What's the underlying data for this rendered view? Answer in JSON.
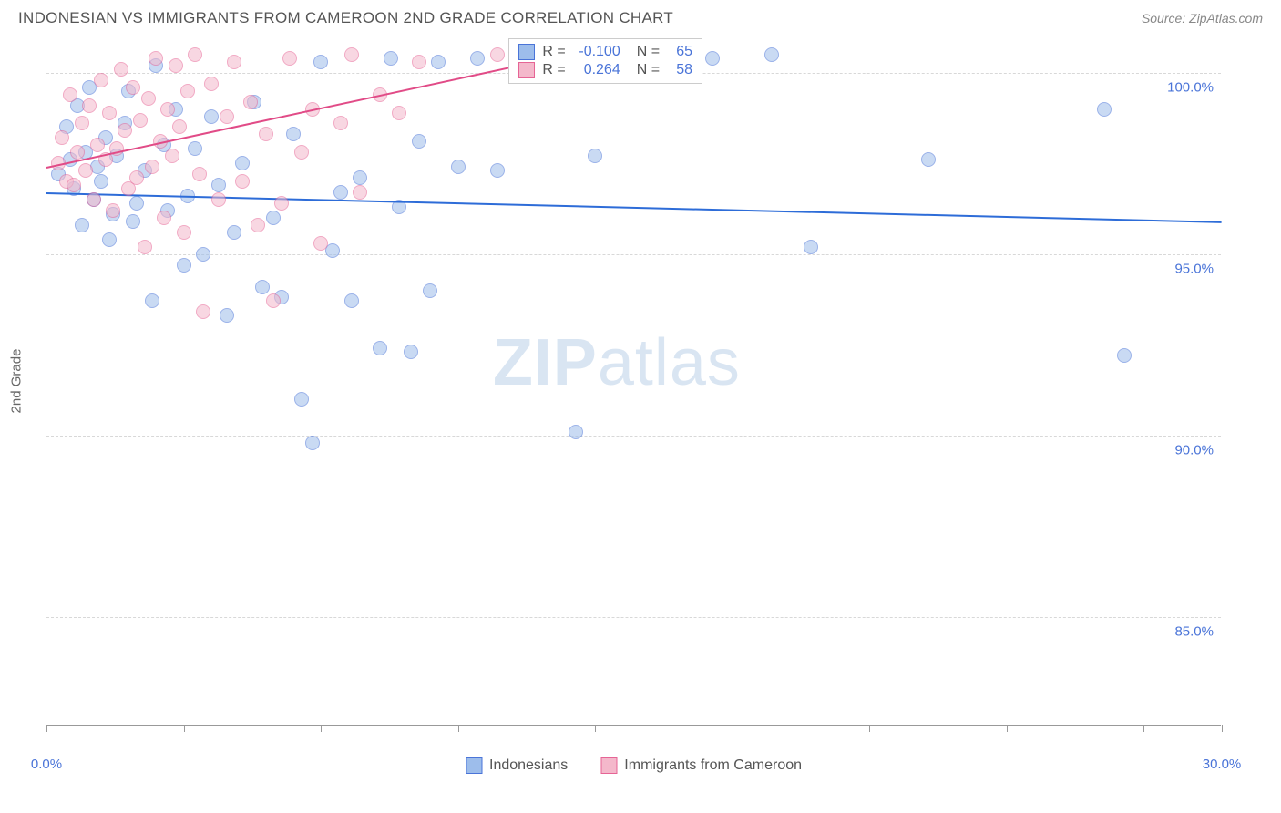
{
  "title": "INDONESIAN VS IMMIGRANTS FROM CAMEROON 2ND GRADE CORRELATION CHART",
  "source": "Source: ZipAtlas.com",
  "y_axis_label": "2nd Grade",
  "watermark": "ZIPatlas",
  "chart": {
    "type": "scatter",
    "background_color": "#ffffff",
    "grid_color": "#d8d8d8",
    "axis_color": "#999999",
    "tick_label_color": "#4a74d8",
    "xlim": [
      0,
      30
    ],
    "ylim": [
      82,
      101
    ],
    "x_ticks": [
      0,
      3.5,
      7,
      10.5,
      14,
      17.5,
      21,
      24.5,
      28,
      30
    ],
    "x_tick_labels": {
      "0": "0.0%",
      "30": "30.0%"
    },
    "y_gridlines": [
      85,
      90,
      95,
      100
    ],
    "y_tick_labels": {
      "85": "85.0%",
      "90": "90.0%",
      "95": "95.0%",
      "100": "100.0%"
    },
    "marker_radius": 8,
    "marker_opacity": 0.55,
    "series": [
      {
        "name": "Indonesians",
        "color_fill": "#9dbdeb",
        "color_stroke": "#4a74d8",
        "trend_color": "#2d6cd8",
        "R": "-0.100",
        "N": "65",
        "trend": {
          "x1": 0,
          "y1": 96.7,
          "x2": 30,
          "y2": 95.9
        },
        "points": [
          [
            0.3,
            97.2
          ],
          [
            0.5,
            98.5
          ],
          [
            0.6,
            97.6
          ],
          [
            0.7,
            96.8
          ],
          [
            0.8,
            99.1
          ],
          [
            0.9,
            95.8
          ],
          [
            1.0,
            97.8
          ],
          [
            1.1,
            99.6
          ],
          [
            1.2,
            96.5
          ],
          [
            1.3,
            97.4
          ],
          [
            1.4,
            97.0
          ],
          [
            1.5,
            98.2
          ],
          [
            1.6,
            95.4
          ],
          [
            1.7,
            96.1
          ],
          [
            1.8,
            97.7
          ],
          [
            2.0,
            98.6
          ],
          [
            2.1,
            99.5
          ],
          [
            2.2,
            95.9
          ],
          [
            2.3,
            96.4
          ],
          [
            2.5,
            97.3
          ],
          [
            2.7,
            93.7
          ],
          [
            2.8,
            100.2
          ],
          [
            3.0,
            98.0
          ],
          [
            3.1,
            96.2
          ],
          [
            3.3,
            99.0
          ],
          [
            3.5,
            94.7
          ],
          [
            3.6,
            96.6
          ],
          [
            3.8,
            97.9
          ],
          [
            4.0,
            95.0
          ],
          [
            4.2,
            98.8
          ],
          [
            4.4,
            96.9
          ],
          [
            4.6,
            93.3
          ],
          [
            4.8,
            95.6
          ],
          [
            5.0,
            97.5
          ],
          [
            5.3,
            99.2
          ],
          [
            5.5,
            94.1
          ],
          [
            5.8,
            96.0
          ],
          [
            6.0,
            93.8
          ],
          [
            6.3,
            98.3
          ],
          [
            6.5,
            91.0
          ],
          [
            6.8,
            89.8
          ],
          [
            7.0,
            100.3
          ],
          [
            7.3,
            95.1
          ],
          [
            7.5,
            96.7
          ],
          [
            7.8,
            93.7
          ],
          [
            8.0,
            97.1
          ],
          [
            8.5,
            92.4
          ],
          [
            8.8,
            100.4
          ],
          [
            9.0,
            96.3
          ],
          [
            9.3,
            92.3
          ],
          [
            9.5,
            98.1
          ],
          [
            9.8,
            94.0
          ],
          [
            10.0,
            100.3
          ],
          [
            10.5,
            97.4
          ],
          [
            11.0,
            100.4
          ],
          [
            11.5,
            97.3
          ],
          [
            12.0,
            100.3
          ],
          [
            13.5,
            90.1
          ],
          [
            14.0,
            97.7
          ],
          [
            17.0,
            100.4
          ],
          [
            18.5,
            100.5
          ],
          [
            19.5,
            95.2
          ],
          [
            22.5,
            97.6
          ],
          [
            27.5,
            92.2
          ],
          [
            27.0,
            99.0
          ]
        ]
      },
      {
        "name": "Immigrants from Cameroon",
        "color_fill": "#f4b8cb",
        "color_stroke": "#e66495",
        "trend_color": "#e14b87",
        "R": "0.264",
        "N": "58",
        "trend": {
          "x1": 0,
          "y1": 97.4,
          "x2": 12,
          "y2": 100.2
        },
        "points": [
          [
            0.3,
            97.5
          ],
          [
            0.4,
            98.2
          ],
          [
            0.5,
            97.0
          ],
          [
            0.6,
            99.4
          ],
          [
            0.7,
            96.9
          ],
          [
            0.8,
            97.8
          ],
          [
            0.9,
            98.6
          ],
          [
            1.0,
            97.3
          ],
          [
            1.1,
            99.1
          ],
          [
            1.2,
            96.5
          ],
          [
            1.3,
            98.0
          ],
          [
            1.4,
            99.8
          ],
          [
            1.5,
            97.6
          ],
          [
            1.6,
            98.9
          ],
          [
            1.7,
            96.2
          ],
          [
            1.8,
            97.9
          ],
          [
            1.9,
            100.1
          ],
          [
            2.0,
            98.4
          ],
          [
            2.1,
            96.8
          ],
          [
            2.2,
            99.6
          ],
          [
            2.3,
            97.1
          ],
          [
            2.4,
            98.7
          ],
          [
            2.5,
            95.2
          ],
          [
            2.6,
            99.3
          ],
          [
            2.7,
            97.4
          ],
          [
            2.8,
            100.4
          ],
          [
            2.9,
            98.1
          ],
          [
            3.0,
            96.0
          ],
          [
            3.1,
            99.0
          ],
          [
            3.2,
            97.7
          ],
          [
            3.3,
            100.2
          ],
          [
            3.4,
            98.5
          ],
          [
            3.5,
            95.6
          ],
          [
            3.6,
            99.5
          ],
          [
            3.8,
            100.5
          ],
          [
            3.9,
            97.2
          ],
          [
            4.0,
            93.4
          ],
          [
            4.2,
            99.7
          ],
          [
            4.4,
            96.5
          ],
          [
            4.6,
            98.8
          ],
          [
            4.8,
            100.3
          ],
          [
            5.0,
            97.0
          ],
          [
            5.2,
            99.2
          ],
          [
            5.4,
            95.8
          ],
          [
            5.6,
            98.3
          ],
          [
            5.8,
            93.7
          ],
          [
            6.0,
            96.4
          ],
          [
            6.2,
            100.4
          ],
          [
            6.5,
            97.8
          ],
          [
            6.8,
            99.0
          ],
          [
            7.0,
            95.3
          ],
          [
            7.5,
            98.6
          ],
          [
            7.8,
            100.5
          ],
          [
            8.0,
            96.7
          ],
          [
            8.5,
            99.4
          ],
          [
            9.0,
            98.9
          ],
          [
            9.5,
            100.3
          ],
          [
            11.5,
            100.5
          ]
        ]
      }
    ],
    "stats_box": {
      "top_pct": 0,
      "left_x": 11.8
    },
    "legend_bottom": [
      "Indonesians",
      "Immigrants from Cameroon"
    ]
  }
}
